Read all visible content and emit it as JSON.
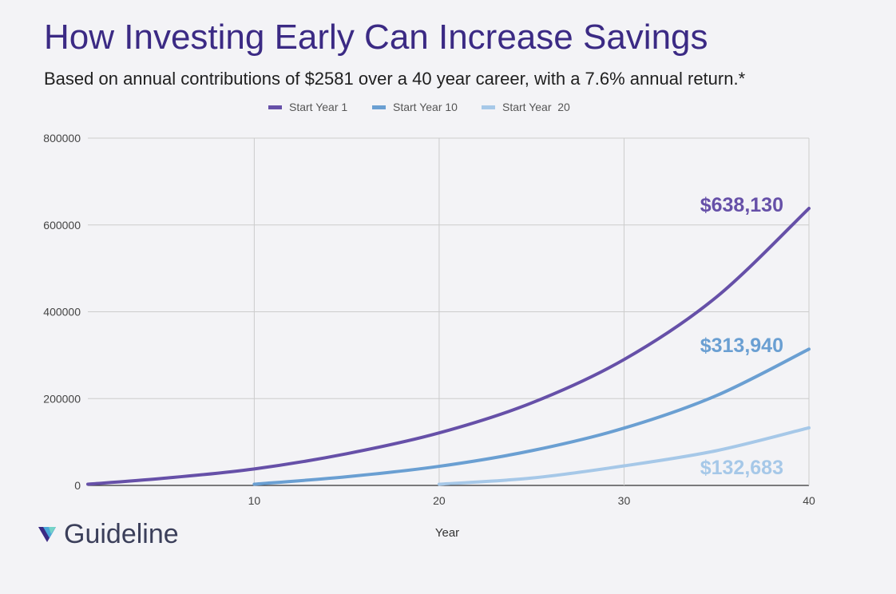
{
  "title": "How Investing Early Can Increase Savings",
  "subtitle": "Based on annual contributions of $2581 over a 40 year career, with a 7.6% annual return.*",
  "brand": {
    "name": "Guideline",
    "icon": "guideline-logo-icon"
  },
  "colors": {
    "title": "#3b2a84",
    "start_year_1": "#6650a8",
    "start_year_10": "#6a9fd2",
    "start_year_20": "#a6c8e8",
    "grid": "#cccccc"
  },
  "chart_data": {
    "type": "line",
    "xlabel": "Year",
    "ylabel": "",
    "xlim": [
      1,
      40
    ],
    "ylim": [
      0,
      800000
    ],
    "xticks": [
      10,
      20,
      30,
      40
    ],
    "yticks": [
      0,
      200000,
      400000,
      600000,
      800000
    ],
    "grid": true,
    "legend_position": "top",
    "series": [
      {
        "name": "Start Year 1",
        "color": "#6650a8",
        "x": [
          1,
          5,
          10,
          15,
          20,
          25,
          30,
          35,
          40
        ],
        "y": [
          2800,
          16000,
          38000,
          73000,
          121000,
          190000,
          290000,
          434000,
          638130
        ],
        "end_label": "$638,130"
      },
      {
        "name": "Start Year 10",
        "color": "#6a9fd2",
        "x": [
          10,
          15,
          20,
          25,
          30,
          35,
          40
        ],
        "y": [
          2800,
          20000,
          44000,
          80000,
          132000,
          207000,
          313940
        ],
        "end_label": "$313,940"
      },
      {
        "name": "Start Year  20",
        "color": "#a6c8e8",
        "x": [
          20,
          25,
          30,
          35,
          40
        ],
        "y": [
          2800,
          17000,
          45000,
          80000,
          132683
        ],
        "end_label": "$132,683"
      }
    ]
  }
}
